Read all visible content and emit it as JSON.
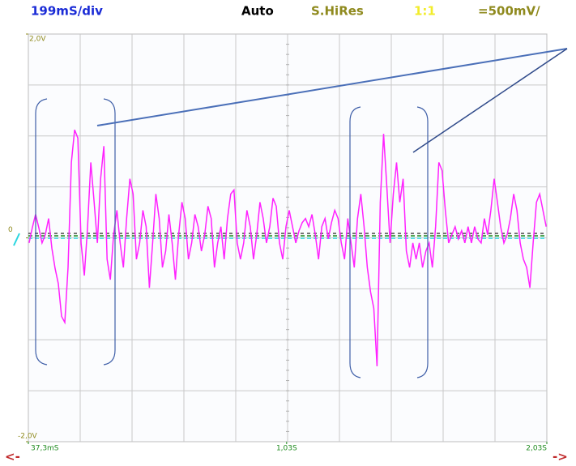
{
  "chart_data": {
    "type": "line",
    "header": [
      {
        "text": "199mS/div",
        "color": "#1a2bd6"
      },
      {
        "text": "Auto",
        "color": "#000000"
      },
      {
        "text": "S.HiRes",
        "color": "#8f8a1e"
      },
      {
        "text": "1:1",
        "color": "#f2ec2a"
      },
      {
        "text": "=500mV/",
        "color": "#8f8a1e"
      }
    ],
    "color": "#ff22ff",
    "ylim": [
      -2,
      2
    ],
    "yticks": [
      {
        "value": 2,
        "label": "2,0V"
      },
      0,
      {
        "value": -2,
        "label": "-2,0V"
      }
    ],
    "xlim": [
      0.0373,
      2.03
    ],
    "xticks": [
      {
        "value": 0.0373,
        "label": "37,3mS"
      },
      {
        "value": 1.03,
        "label": "1,03S"
      },
      {
        "value": 2.03,
        "label": "2,03S"
      }
    ],
    "nav": [
      "<-",
      "->"
    ],
    "grid": true,
    "x": [
      0.04,
      0.0525,
      0.065,
      0.0775,
      0.09,
      0.1025,
      0.115,
      0.1275,
      0.14,
      0.1525,
      0.165,
      0.1775,
      0.19,
      0.2025,
      0.215,
      0.2275,
      0.24,
      0.2525,
      0.265,
      0.2775,
      0.29,
      0.3025,
      0.315,
      0.3275,
      0.34,
      0.3525,
      0.365,
      0.3775,
      0.39,
      0.4025,
      0.415,
      0.4275,
      0.44,
      0.4525,
      0.465,
      0.4775,
      0.49,
      0.5025,
      0.515,
      0.5275,
      0.54,
      0.5525,
      0.565,
      0.5775,
      0.59,
      0.6025,
      0.615,
      0.6275,
      0.64,
      0.6525,
      0.665,
      0.6775,
      0.69,
      0.7025,
      0.715,
      0.7275,
      0.74,
      0.7525,
      0.765,
      0.7775,
      0.79,
      0.8025,
      0.815,
      0.8275,
      0.84,
      0.8525,
      0.865,
      0.8775,
      0.89,
      0.9025,
      0.915,
      0.9275,
      0.94,
      0.9525,
      0.965,
      0.9775,
      0.99,
      1.0025,
      1.015,
      1.0275,
      1.04,
      1.0525,
      1.065,
      1.0775,
      1.09,
      1.1025,
      1.115,
      1.1275,
      1.14,
      1.1525,
      1.165,
      1.1775,
      1.19,
      1.2025,
      1.215,
      1.2275,
      1.24,
      1.2525,
      1.265,
      1.2775,
      1.29,
      1.3025,
      1.315,
      1.3275,
      1.34,
      1.3525,
      1.365,
      1.3775,
      1.39,
      1.4025,
      1.415,
      1.4275,
      1.44,
      1.4525,
      1.465,
      1.4775,
      1.49,
      1.5025,
      1.515,
      1.5275,
      1.54,
      1.5525,
      1.565,
      1.5775,
      1.59,
      1.6025,
      1.615,
      1.6275,
      1.64,
      1.6525,
      1.665,
      1.6775,
      1.69,
      1.7025,
      1.715,
      1.7275,
      1.74,
      1.7525,
      1.765,
      1.7775,
      1.79,
      1.8025,
      1.815,
      1.8275,
      1.84,
      1.8525,
      1.865,
      1.8775,
      1.89,
      1.9025,
      1.915,
      1.9275,
      1.94,
      1.9525,
      1.965,
      1.9775,
      1.99,
      2.0025,
      2.015,
      2.0275
    ],
    "values": [
      -0.05,
      0.1,
      0.23,
      0.1,
      -0.05,
      0.03,
      0.19,
      -0.1,
      -0.3,
      -0.45,
      -0.77,
      -0.83,
      -0.29,
      0.74,
      1.06,
      0.98,
      -0.05,
      -0.37,
      0.11,
      0.74,
      0.35,
      -0.05,
      0.58,
      0.9,
      -0.21,
      -0.41,
      0.03,
      0.27,
      -0.05,
      -0.29,
      0.19,
      0.58,
      0.43,
      -0.21,
      -0.05,
      0.27,
      0.11,
      -0.49,
      -0.05,
      0.43,
      0.19,
      -0.29,
      -0.13,
      0.23,
      -0.05,
      -0.41,
      0.03,
      0.35,
      0.19,
      -0.21,
      -0.05,
      0.23,
      0.11,
      -0.13,
      0.03,
      0.31,
      0.19,
      -0.29,
      -0.05,
      0.11,
      -0.21,
      0.19,
      0.43,
      0.47,
      -0.05,
      -0.21,
      -0.05,
      0.27,
      0.11,
      -0.21,
      0.03,
      0.35,
      0.19,
      -0.05,
      0.11,
      0.39,
      0.31,
      -0.05,
      -0.21,
      0.11,
      0.27,
      0.11,
      -0.05,
      0.07,
      0.15,
      0.19,
      0.11,
      0.23,
      0.03,
      -0.21,
      0.11,
      0.19,
      -0.01,
      0.15,
      0.27,
      0.19,
      -0.05,
      -0.21,
      0.19,
      -0.05,
      -0.29,
      0.19,
      0.43,
      0.11,
      -0.29,
      -0.53,
      -0.69,
      -1.26,
      0.35,
      1.02,
      0.5,
      -0.05,
      0.43,
      0.74,
      0.35,
      0.58,
      -0.13,
      -0.29,
      -0.05,
      -0.21,
      -0.05,
      -0.29,
      -0.13,
      -0.05,
      -0.29,
      0.11,
      0.74,
      0.66,
      0.27,
      -0.05,
      0.03,
      0.11,
      -0.01,
      0.07,
      -0.05,
      0.11,
      -0.05,
      0.11,
      -0.01,
      -0.05,
      0.19,
      0.03,
      0.27,
      0.58,
      0.35,
      0.11,
      -0.05,
      0.03,
      0.19,
      0.43,
      0.27,
      -0.05,
      -0.21,
      -0.29,
      -0.49,
      -0.05,
      0.35,
      0.43,
      0.27,
      0.11
    ]
  }
}
